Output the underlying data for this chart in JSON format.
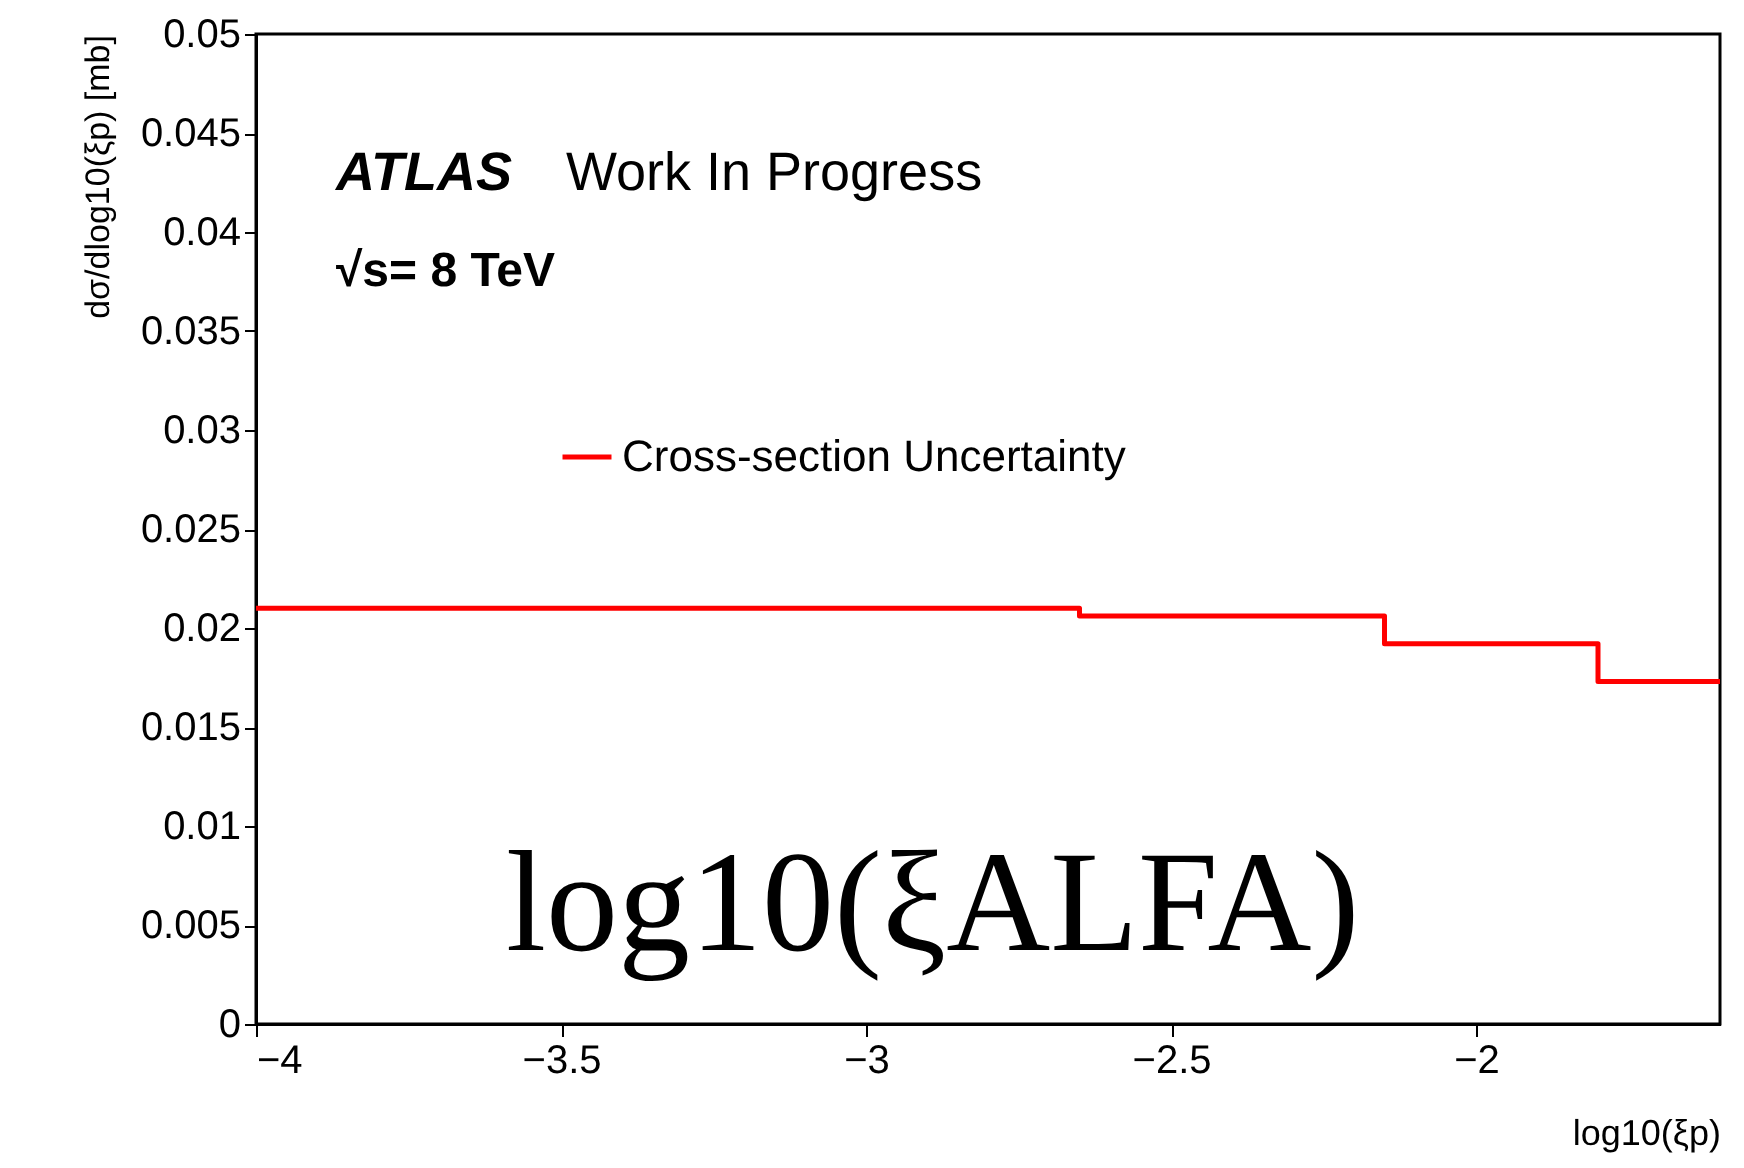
{
  "chart_data": {
    "type": "step",
    "xlabel": "log10(ξp)",
    "ylabel": "dσ/dlog10(ξp) [mb]",
    "x": [
      -4,
      -2.65,
      -2.15,
      -1.8,
      -1.6
    ],
    "series": [
      {
        "name": "Cross-section Uncertainty",
        "color": "#ff0000",
        "values": [
          0.021,
          0.0206,
          0.0192,
          0.0173,
          0.0173
        ]
      }
    ],
    "xlim": [
      -4,
      -1.6
    ],
    "ylim": [
      0,
      0.05
    ],
    "xticks": [
      -4,
      -3.5,
      -3,
      -2.5,
      -2
    ],
    "yticks": [
      0,
      0.005,
      0.01,
      0.015,
      0.02,
      0.025,
      0.03,
      0.035,
      0.04,
      0.045,
      0.05
    ],
    "grid": false,
    "legend": "top",
    "marker": "none",
    "line_style": "solid",
    "annotations": [
      "ATLAS",
      "Work In Progress",
      "√s= 8 TeV",
      "log10(ξALFA)"
    ]
  }
}
